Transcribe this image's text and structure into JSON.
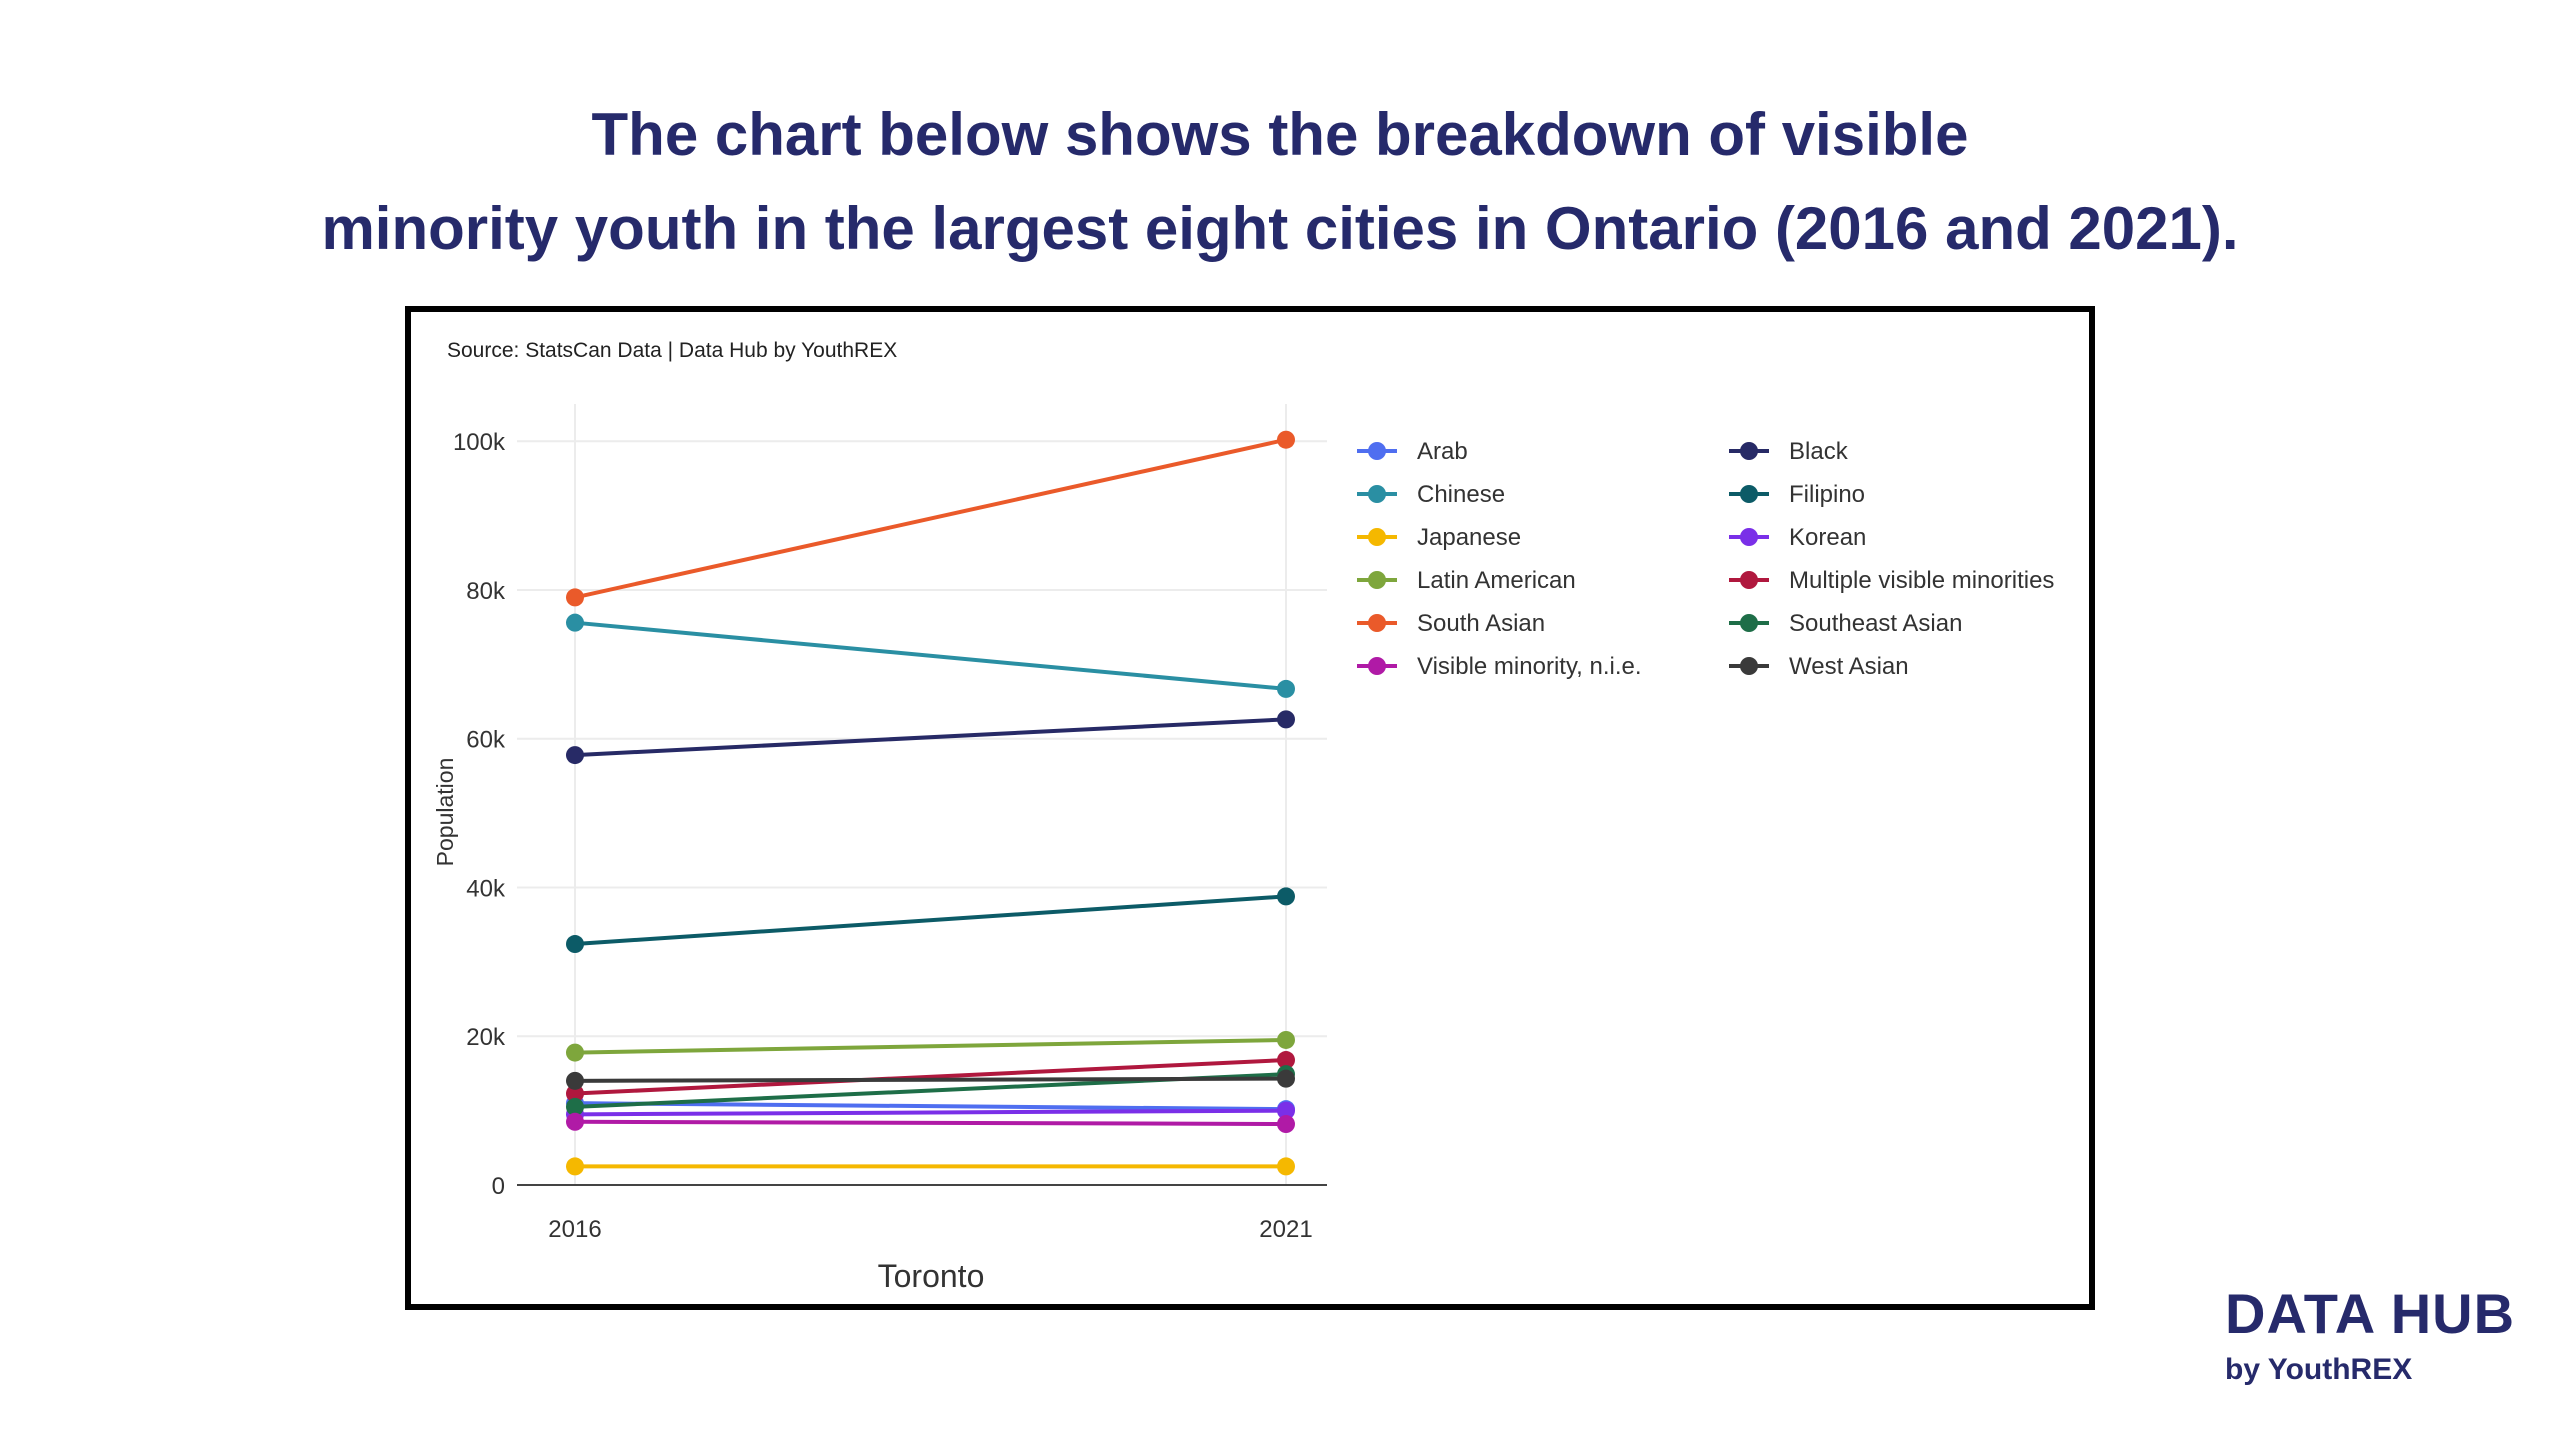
{
  "headline": {
    "line1": "The chart below shows the breakdown of visible",
    "line2": "minority youth in the largest eight cities in Ontario (2016 and 2021)."
  },
  "brand": {
    "name": "DATA HUB",
    "sub": "by YouthREX"
  },
  "chart_data": {
    "type": "line",
    "source_note": "Source: StatsCan Data | Data Hub by YouthREX",
    "xlabel": "Toronto",
    "ylabel": "Population",
    "x": [
      "2016",
      "2021"
    ],
    "ylim": [
      0,
      105000
    ],
    "yticks": [
      0,
      20000,
      40000,
      60000,
      80000,
      100000
    ],
    "ytick_labels": [
      "0",
      "20k",
      "40k",
      "60k",
      "80k",
      "100k"
    ],
    "grid": true,
    "legend_placement": "top-right",
    "series": [
      {
        "name": "Arab",
        "color": "#4f6ef0",
        "values": [
          11000,
          10200
        ]
      },
      {
        "name": "Black",
        "color": "#272a66",
        "values": [
          57800,
          62600
        ]
      },
      {
        "name": "Chinese",
        "color": "#2a8fa3",
        "values": [
          75600,
          66700
        ]
      },
      {
        "name": "Filipino",
        "color": "#0c5b67",
        "values": [
          32400,
          38800
        ]
      },
      {
        "name": "Japanese",
        "color": "#f5b800",
        "values": [
          2500,
          2500
        ]
      },
      {
        "name": "Korean",
        "color": "#7a2fe8",
        "values": [
          9500,
          10000
        ]
      },
      {
        "name": "Latin American",
        "color": "#7ea63c",
        "values": [
          17800,
          19500
        ]
      },
      {
        "name": "Multiple visible minorities",
        "color": "#b0183e",
        "values": [
          12300,
          16800
        ]
      },
      {
        "name": "South Asian",
        "color": "#ea5a2a",
        "values": [
          79000,
          100200
        ]
      },
      {
        "name": "Southeast Asian",
        "color": "#1e6e48",
        "values": [
          10500,
          14900
        ]
      },
      {
        "name": "Visible minority, n.i.e.",
        "color": "#b01aa6",
        "values": [
          8500,
          8200
        ]
      },
      {
        "name": "West Asian",
        "color": "#3a3a3a",
        "values": [
          14000,
          14300
        ]
      }
    ]
  }
}
